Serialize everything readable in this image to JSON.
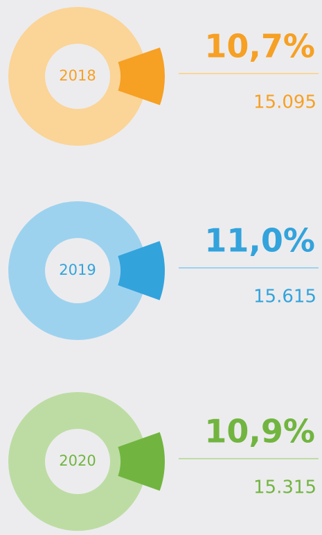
{
  "chart_data": [
    {
      "type": "donut",
      "title": "2018",
      "values": [
        10.7
      ],
      "value_labels": [
        "10,7%"
      ],
      "total": {
        "value": 15095,
        "label": "15.095"
      },
      "color": "#f6a024",
      "base_color": "#fbd497"
    },
    {
      "type": "donut",
      "title": "2019",
      "values": [
        11.0
      ],
      "value_labels": [
        "11,0%"
      ],
      "total": {
        "value": 15615,
        "label": "15.615"
      },
      "color": "#33a3dc",
      "base_color": "#9dd2ef"
    },
    {
      "type": "donut",
      "title": "2020",
      "values": [
        10.9
      ],
      "value_labels": [
        "10,9%"
      ],
      "total": {
        "value": 15315,
        "label": "15.315"
      },
      "color": "#71b540",
      "base_color": "#bddca3"
    }
  ]
}
